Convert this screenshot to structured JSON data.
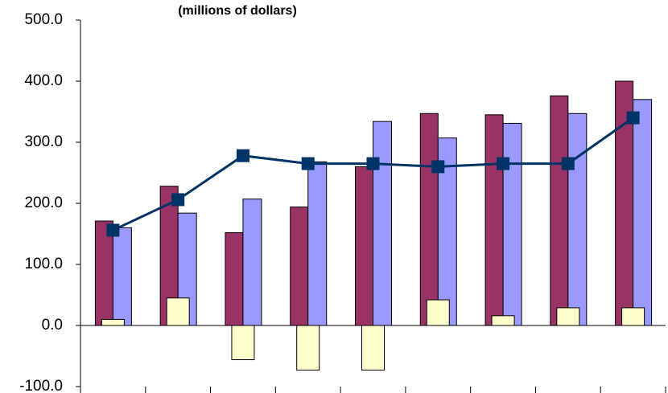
{
  "chart_data": {
    "type": "bar",
    "title": "(millions of dollars)",
    "categories": [
      null,
      null,
      null,
      null,
      null,
      null,
      null,
      null,
      null
    ],
    "series": [
      {
        "color": "#993366",
        "values": [
          171,
          228,
          152,
          194,
          260,
          347,
          345,
          376,
          400
        ]
      },
      {
        "color": "#9999ff",
        "values": [
          160,
          184,
          207,
          268,
          334,
          307,
          331,
          347,
          370
        ]
      },
      {
        "color": "#ffffcc",
        "values": [
          10,
          45,
          -56,
          -73,
          -73,
          42,
          16,
          29,
          29
        ]
      },
      {
        "type": "line",
        "color": "#003366",
        "values": [
          156,
          206,
          278,
          265,
          265,
          260,
          265,
          265,
          340
        ]
      }
    ],
    "ylim": [
      -100,
      500
    ],
    "yticks": [
      {
        "value": -100,
        "label": "-100.0"
      },
      {
        "value": 0,
        "label": "0.0"
      },
      {
        "value": 100,
        "label": "100.0"
      },
      {
        "value": 200,
        "label": "200.0"
      },
      {
        "value": 300,
        "label": "300.0"
      },
      {
        "value": 400,
        "label": "400.0"
      },
      {
        "value": 500,
        "label": "500.0"
      }
    ],
    "grid": false
  }
}
